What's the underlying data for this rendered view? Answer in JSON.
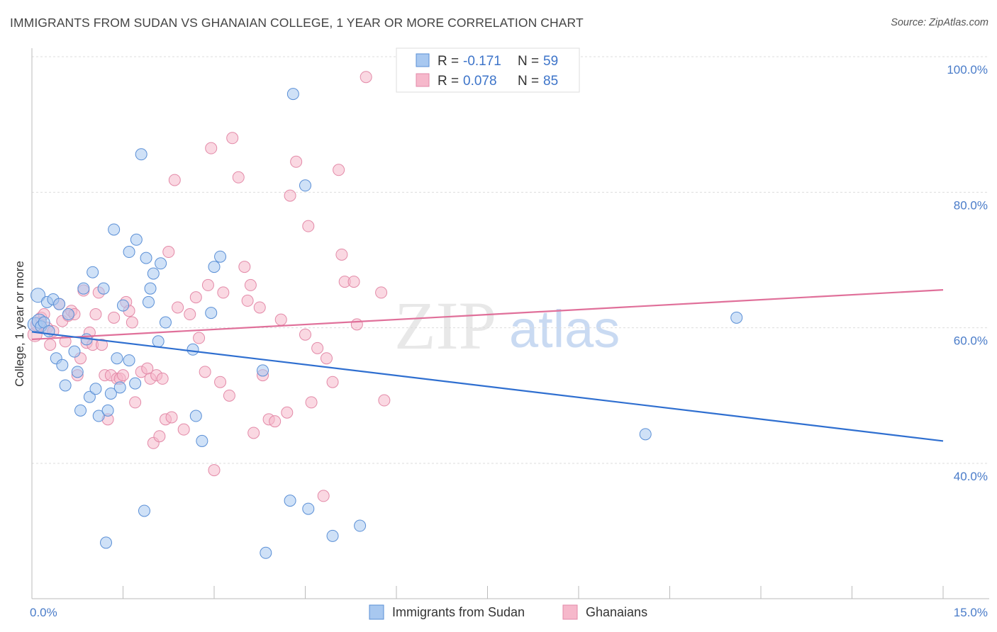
{
  "title": "IMMIGRANTS FROM SUDAN VS GHANAIAN COLLEGE, 1 YEAR OR MORE CORRELATION CHART",
  "source": "Source: ZipAtlas.com",
  "watermark": {
    "zip": "ZIP",
    "atlas": "atlas"
  },
  "colors": {
    "sudan_fill": "#a8c8f0",
    "sudan_stroke": "#5a8fd6",
    "sudan_line": "#2f6fd0",
    "ghana_fill": "#f6b8cb",
    "ghana_stroke": "#e38aa8",
    "ghana_line": "#e0709a",
    "tick_label": "#4a7cc9",
    "grid": "#dddddd"
  },
  "legend_top": {
    "rows": [
      {
        "r_label": "R = ",
        "r_value": "-0.171",
        "n_label": "N = ",
        "n_value": "59"
      },
      {
        "r_label": "R = ",
        "r_value": "0.078",
        "n_label": "N = ",
        "n_value": "85"
      }
    ]
  },
  "chart_data": {
    "type": "scatter",
    "title": "IMMIGRANTS FROM SUDAN VS GHANAIAN COLLEGE, 1 YEAR OR MORE CORRELATION CHART",
    "xlabel": "",
    "ylabel": "College, 1 year or more",
    "xlim": [
      0,
      15
    ],
    "ylim": [
      20,
      102
    ],
    "x_tick_labels": [
      "0.0%",
      "15.0%"
    ],
    "y_ticks": [
      40,
      60,
      80,
      100
    ],
    "y_tick_labels": [
      "40.0%",
      "60.0%",
      "80.0%",
      "100.0%"
    ],
    "grid": true,
    "legend": "top-center and bottom",
    "series": [
      {
        "name": "Immigrants from Sudan",
        "r": -0.171,
        "n": 59,
        "trend": {
          "x": [
            0,
            15
          ],
          "y": [
            59.4,
            43.3
          ]
        },
        "points": [
          [
            0.05,
            60.5
          ],
          [
            0.1,
            64.8
          ],
          [
            0.12,
            61.0
          ],
          [
            0.15,
            60.2
          ],
          [
            0.2,
            60.8
          ],
          [
            0.25,
            63.8
          ],
          [
            0.28,
            59.5
          ],
          [
            0.35,
            64.2
          ],
          [
            0.4,
            55.5
          ],
          [
            0.45,
            63.5
          ],
          [
            0.5,
            54.5
          ],
          [
            0.55,
            51.5
          ],
          [
            0.6,
            62.0
          ],
          [
            0.7,
            56.5
          ],
          [
            0.75,
            53.5
          ],
          [
            0.8,
            47.8
          ],
          [
            0.85,
            65.8
          ],
          [
            0.9,
            58.3
          ],
          [
            0.95,
            49.8
          ],
          [
            1.0,
            68.2
          ],
          [
            1.05,
            51.0
          ],
          [
            1.1,
            47.0
          ],
          [
            1.18,
            65.8
          ],
          [
            1.22,
            28.3
          ],
          [
            1.25,
            47.8
          ],
          [
            1.3,
            50.3
          ],
          [
            1.35,
            74.5
          ],
          [
            1.4,
            55.5
          ],
          [
            1.45,
            51.2
          ],
          [
            1.5,
            63.3
          ],
          [
            1.6,
            71.2
          ],
          [
            1.6,
            55.2
          ],
          [
            1.7,
            51.8
          ],
          [
            1.72,
            73.0
          ],
          [
            1.8,
            85.6
          ],
          [
            1.85,
            33.0
          ],
          [
            1.88,
            70.3
          ],
          [
            1.92,
            63.8
          ],
          [
            1.95,
            65.8
          ],
          [
            2.0,
            68.0
          ],
          [
            2.08,
            58.0
          ],
          [
            2.12,
            69.5
          ],
          [
            2.2,
            60.8
          ],
          [
            2.65,
            56.8
          ],
          [
            2.7,
            47.0
          ],
          [
            2.8,
            43.3
          ],
          [
            2.95,
            62.2
          ],
          [
            3.0,
            69.0
          ],
          [
            3.1,
            70.5
          ],
          [
            3.8,
            53.7
          ],
          [
            3.85,
            26.8
          ],
          [
            4.25,
            34.5
          ],
          [
            4.3,
            94.5
          ],
          [
            4.5,
            81.0
          ],
          [
            4.55,
            33.3
          ],
          [
            4.95,
            29.3
          ],
          [
            5.4,
            30.8
          ],
          [
            10.1,
            44.3
          ],
          [
            11.6,
            61.5
          ]
        ]
      },
      {
        "name": "Ghanaians",
        "r": 0.078,
        "n": 85,
        "trend": {
          "x": [
            0,
            15
          ],
          "y": [
            58.3,
            65.6
          ]
        },
        "points": [
          [
            0.05,
            59.0
          ],
          [
            0.1,
            60.5
          ],
          [
            0.15,
            61.5
          ],
          [
            0.2,
            62.0
          ],
          [
            0.25,
            60.0
          ],
          [
            0.3,
            57.5
          ],
          [
            0.35,
            59.5
          ],
          [
            0.45,
            63.5
          ],
          [
            0.5,
            61.0
          ],
          [
            0.55,
            58.0
          ],
          [
            0.6,
            61.8
          ],
          [
            0.65,
            62.5
          ],
          [
            0.7,
            62.0
          ],
          [
            0.75,
            53.0
          ],
          [
            0.8,
            55.5
          ],
          [
            0.85,
            65.5
          ],
          [
            0.9,
            57.8
          ],
          [
            0.95,
            59.3
          ],
          [
            1.0,
            57.5
          ],
          [
            1.05,
            62.0
          ],
          [
            1.1,
            65.2
          ],
          [
            1.15,
            57.5
          ],
          [
            1.2,
            53.0
          ],
          [
            1.25,
            46.5
          ],
          [
            1.3,
            53.0
          ],
          [
            1.35,
            61.5
          ],
          [
            1.4,
            52.5
          ],
          [
            1.45,
            52.5
          ],
          [
            1.5,
            53.0
          ],
          [
            1.55,
            63.8
          ],
          [
            1.6,
            62.5
          ],
          [
            1.65,
            60.8
          ],
          [
            1.7,
            49.0
          ],
          [
            1.8,
            53.5
          ],
          [
            1.9,
            54.0
          ],
          [
            1.95,
            52.5
          ],
          [
            2.0,
            43.0
          ],
          [
            2.05,
            53.0
          ],
          [
            2.1,
            44.0
          ],
          [
            2.15,
            52.5
          ],
          [
            2.2,
            46.5
          ],
          [
            2.25,
            71.2
          ],
          [
            2.3,
            46.8
          ],
          [
            2.35,
            81.8
          ],
          [
            2.4,
            63.0
          ],
          [
            2.5,
            45.0
          ],
          [
            2.6,
            62.0
          ],
          [
            2.7,
            64.5
          ],
          [
            2.75,
            58.5
          ],
          [
            2.85,
            53.5
          ],
          [
            2.9,
            66.3
          ],
          [
            2.95,
            86.5
          ],
          [
            3.0,
            39.0
          ],
          [
            3.1,
            52.0
          ],
          [
            3.15,
            65.2
          ],
          [
            3.25,
            50.0
          ],
          [
            3.3,
            88.0
          ],
          [
            3.4,
            82.2
          ],
          [
            3.5,
            69.0
          ],
          [
            3.55,
            64.0
          ],
          [
            3.6,
            66.3
          ],
          [
            3.65,
            44.5
          ],
          [
            3.75,
            63.0
          ],
          [
            3.8,
            53.0
          ],
          [
            3.9,
            46.5
          ],
          [
            4.0,
            46.2
          ],
          [
            4.1,
            61.2
          ],
          [
            4.2,
            47.5
          ],
          [
            4.25,
            79.5
          ],
          [
            4.35,
            84.5
          ],
          [
            4.5,
            59.0
          ],
          [
            4.55,
            75.0
          ],
          [
            4.6,
            49.0
          ],
          [
            4.7,
            57.0
          ],
          [
            4.8,
            35.2
          ],
          [
            4.85,
            55.5
          ],
          [
            4.95,
            52.0
          ],
          [
            5.05,
            83.3
          ],
          [
            5.1,
            70.8
          ],
          [
            5.15,
            66.8
          ],
          [
            5.3,
            66.8
          ],
          [
            5.35,
            60.5
          ],
          [
            5.5,
            97.0
          ],
          [
            5.75,
            65.2
          ],
          [
            5.8,
            49.3
          ]
        ]
      }
    ]
  },
  "legend_bottom": [
    "Immigrants from Sudan",
    "Ghanaians"
  ]
}
